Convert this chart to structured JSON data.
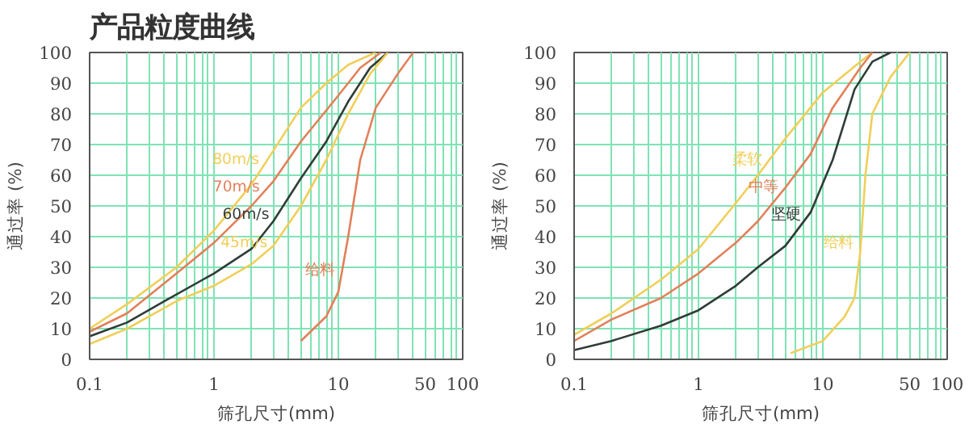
{
  "chart_data": [
    {
      "type": "line",
      "title": "产品粒度曲线",
      "xlabel": "筛孔尺寸(mm)",
      "ylabel": "通过率 (%)",
      "log": "x",
      "grid": true,
      "xlim": [
        0.1,
        100
      ],
      "ylim": [
        0,
        100
      ],
      "xticks": [
        0.1,
        {
          "value": 0.2,
          "label": null
        },
        {
          "value": 0.3,
          "label": null
        },
        {
          "value": 0.4,
          "label": null
        },
        {
          "value": 0.5,
          "label": null
        },
        {
          "value": 0.6,
          "label": null
        },
        {
          "value": 0.7,
          "label": null
        },
        {
          "value": 0.8,
          "label": null
        },
        {
          "value": 0.9,
          "label": null
        },
        1,
        {
          "value": 2,
          "label": null
        },
        {
          "value": 3,
          "label": null
        },
        {
          "value": 4,
          "label": null
        },
        {
          "value": 5,
          "label": null
        },
        {
          "value": 6,
          "label": null
        },
        {
          "value": 7,
          "label": null
        },
        {
          "value": 8,
          "label": null
        },
        {
          "value": 9,
          "label": null
        },
        10,
        {
          "value": 20,
          "label": null
        },
        {
          "value": 30,
          "label": null
        },
        {
          "value": 40,
          "label": null
        },
        50,
        {
          "value": 60,
          "label": null
        },
        {
          "value": 70,
          "label": null
        },
        {
          "value": 80,
          "label": null
        },
        {
          "value": 90,
          "label": null
        },
        100
      ],
      "yticks": [
        0,
        10,
        20,
        30,
        40,
        50,
        60,
        70,
        80,
        90,
        100
      ],
      "series": [
        {
          "name": "80m/s",
          "color": "#f0cf5a",
          "x": [
            0.1,
            0.2,
            0.5,
            1,
            2,
            3,
            5,
            8,
            12,
            20
          ],
          "values": [
            10,
            18,
            30,
            42,
            57,
            68,
            82,
            90,
            96,
            100
          ]
        },
        {
          "name": "70m/s",
          "color": "#e2805a",
          "x": [
            0.1,
            0.2,
            0.5,
            1,
            2,
            3,
            5,
            10,
            15,
            22
          ],
          "values": [
            9,
            15,
            28,
            38,
            50,
            58,
            71,
            86,
            95,
            100
          ]
        },
        {
          "name": "60m/s",
          "color": "#2f3d36",
          "x": [
            0.1,
            0.2,
            0.4,
            1,
            2,
            3,
            5,
            8,
            12,
            18,
            25
          ],
          "values": [
            7.5,
            12,
            19,
            28,
            36,
            45,
            59,
            71,
            84,
            95,
            100
          ]
        },
        {
          "name": "45m/s",
          "color": "#f0cf5a",
          "x": [
            0.1,
            0.2,
            0.5,
            1,
            2,
            3,
            5,
            8,
            12,
            18,
            25
          ],
          "values": [
            5,
            10,
            19,
            24,
            31,
            37,
            50,
            65,
            80,
            93,
            100
          ]
        },
        {
          "name": "给料",
          "color": "#e2805a",
          "x": [
            5,
            8,
            10,
            12,
            15,
            20,
            30,
            40
          ],
          "values": [
            6,
            14,
            22,
            40,
            65,
            82,
            93,
            100
          ]
        }
      ]
    },
    {
      "type": "line",
      "xlabel": "筛孔尺寸(mm)",
      "ylabel": "通过率 (%)",
      "log": "x",
      "grid": true,
      "xlim": [
        0.1,
        100
      ],
      "ylim": [
        0,
        100
      ],
      "xticks": [
        0.1,
        {
          "value": 0.2,
          "label": null
        },
        {
          "value": 0.3,
          "label": null
        },
        {
          "value": 0.4,
          "label": null
        },
        {
          "value": 0.5,
          "label": null
        },
        {
          "value": 0.6,
          "label": null
        },
        {
          "value": 0.7,
          "label": null
        },
        {
          "value": 0.8,
          "label": null
        },
        {
          "value": 0.9,
          "label": null
        },
        1,
        {
          "value": 2,
          "label": null
        },
        {
          "value": 3,
          "label": null
        },
        {
          "value": 4,
          "label": null
        },
        {
          "value": 5,
          "label": null
        },
        {
          "value": 6,
          "label": null
        },
        {
          "value": 7,
          "label": null
        },
        {
          "value": 8,
          "label": null
        },
        {
          "value": 9,
          "label": null
        },
        10,
        {
          "value": 20,
          "label": null
        },
        {
          "value": 30,
          "label": null
        },
        {
          "value": 40,
          "label": null
        },
        50,
        {
          "value": 60,
          "label": null
        },
        {
          "value": 70,
          "label": null
        },
        {
          "value": 80,
          "label": null
        },
        {
          "value": 90,
          "label": null
        },
        100
      ],
      "yticks": [
        0,
        10,
        20,
        30,
        40,
        50,
        60,
        70,
        80,
        90,
        100
      ],
      "series": [
        {
          "name": "柔软",
          "color": "#f0cf5a",
          "x": [
            0.1,
            0.2,
            0.5,
            1,
            2,
            3,
            5,
            10,
            20,
            25
          ],
          "values": [
            8,
            15,
            26,
            36,
            51,
            60,
            72,
            87,
            97,
            100
          ]
        },
        {
          "name": "中等",
          "color": "#e2805a",
          "x": [
            0.1,
            0.2,
            0.5,
            1,
            2,
            3,
            5,
            8,
            12,
            20,
            25
          ],
          "values": [
            6,
            13,
            20,
            28,
            38,
            45,
            56,
            67,
            82,
            95,
            100
          ]
        },
        {
          "name": "坚硬",
          "color": "#2f3d36",
          "x": [
            0.1,
            0.2,
            0.5,
            1,
            2,
            3,
            5,
            8,
            12,
            18,
            25,
            35
          ],
          "values": [
            3,
            6,
            11,
            16,
            24,
            30,
            37,
            48,
            65,
            88,
            97,
            100
          ]
        },
        {
          "name": "给料",
          "color": "#f0cf5a",
          "x": [
            5.5,
            10,
            15,
            18,
            20,
            22,
            25,
            35,
            50
          ],
          "values": [
            2,
            6,
            14,
            20,
            35,
            60,
            80,
            92,
            100
          ]
        }
      ]
    }
  ]
}
